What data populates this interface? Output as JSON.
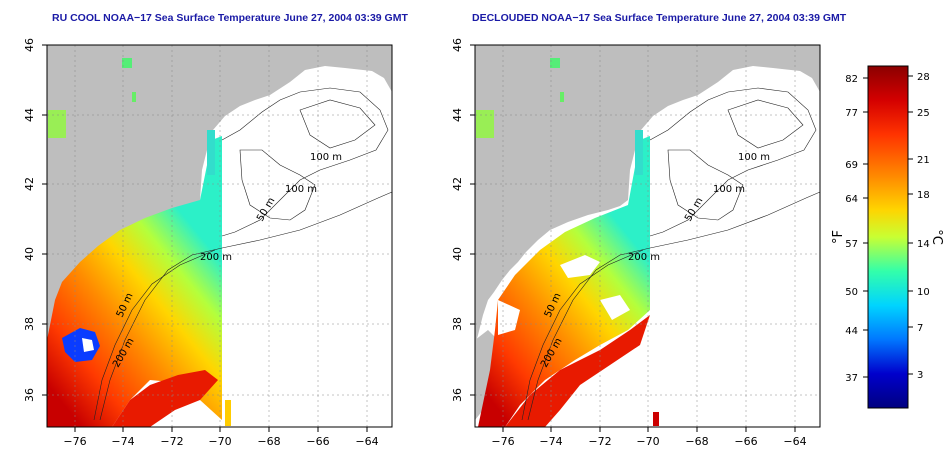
{
  "left_panel": {
    "title": "RU COOL NOAA−17 Sea Surface Temperature June 27, 2004 03:39 GMT",
    "contour_labels": [
      "100 m",
      "100 m",
      "50 m",
      "200 m",
      "50 m",
      "200 m"
    ]
  },
  "right_panel": {
    "title": "DECLOUDED NOAA−17 Sea Surface Temperature June 27, 2004 03:39 GMT",
    "contour_labels": [
      "100 m",
      "100 m",
      "50 m",
      "200 m",
      "50 m",
      "200 m"
    ]
  },
  "axes": {
    "x_ticks": [
      "−76",
      "−74",
      "−72",
      "−70",
      "−68",
      "−66",
      "−64"
    ],
    "y_ticks": [
      "36",
      "38",
      "40",
      "42",
      "44",
      "46"
    ]
  },
  "colorbar": {
    "f_label": "°F",
    "c_label": "°C",
    "f_ticks": [
      "82",
      "77",
      "69",
      "64",
      "57",
      "50",
      "44",
      "37"
    ],
    "c_ticks": [
      "28",
      "25",
      "21",
      "18",
      "14",
      "10",
      "7",
      "3"
    ]
  },
  "colors": {
    "land": "#bebebe",
    "title": "#1a1aa6",
    "ramp": [
      "#8b0000",
      "#d40000",
      "#ff3300",
      "#ff8800",
      "#ffd400",
      "#c8ff33",
      "#33ffaa",
      "#00d4ff",
      "#0077ff",
      "#0000cc",
      "#000080"
    ]
  }
}
